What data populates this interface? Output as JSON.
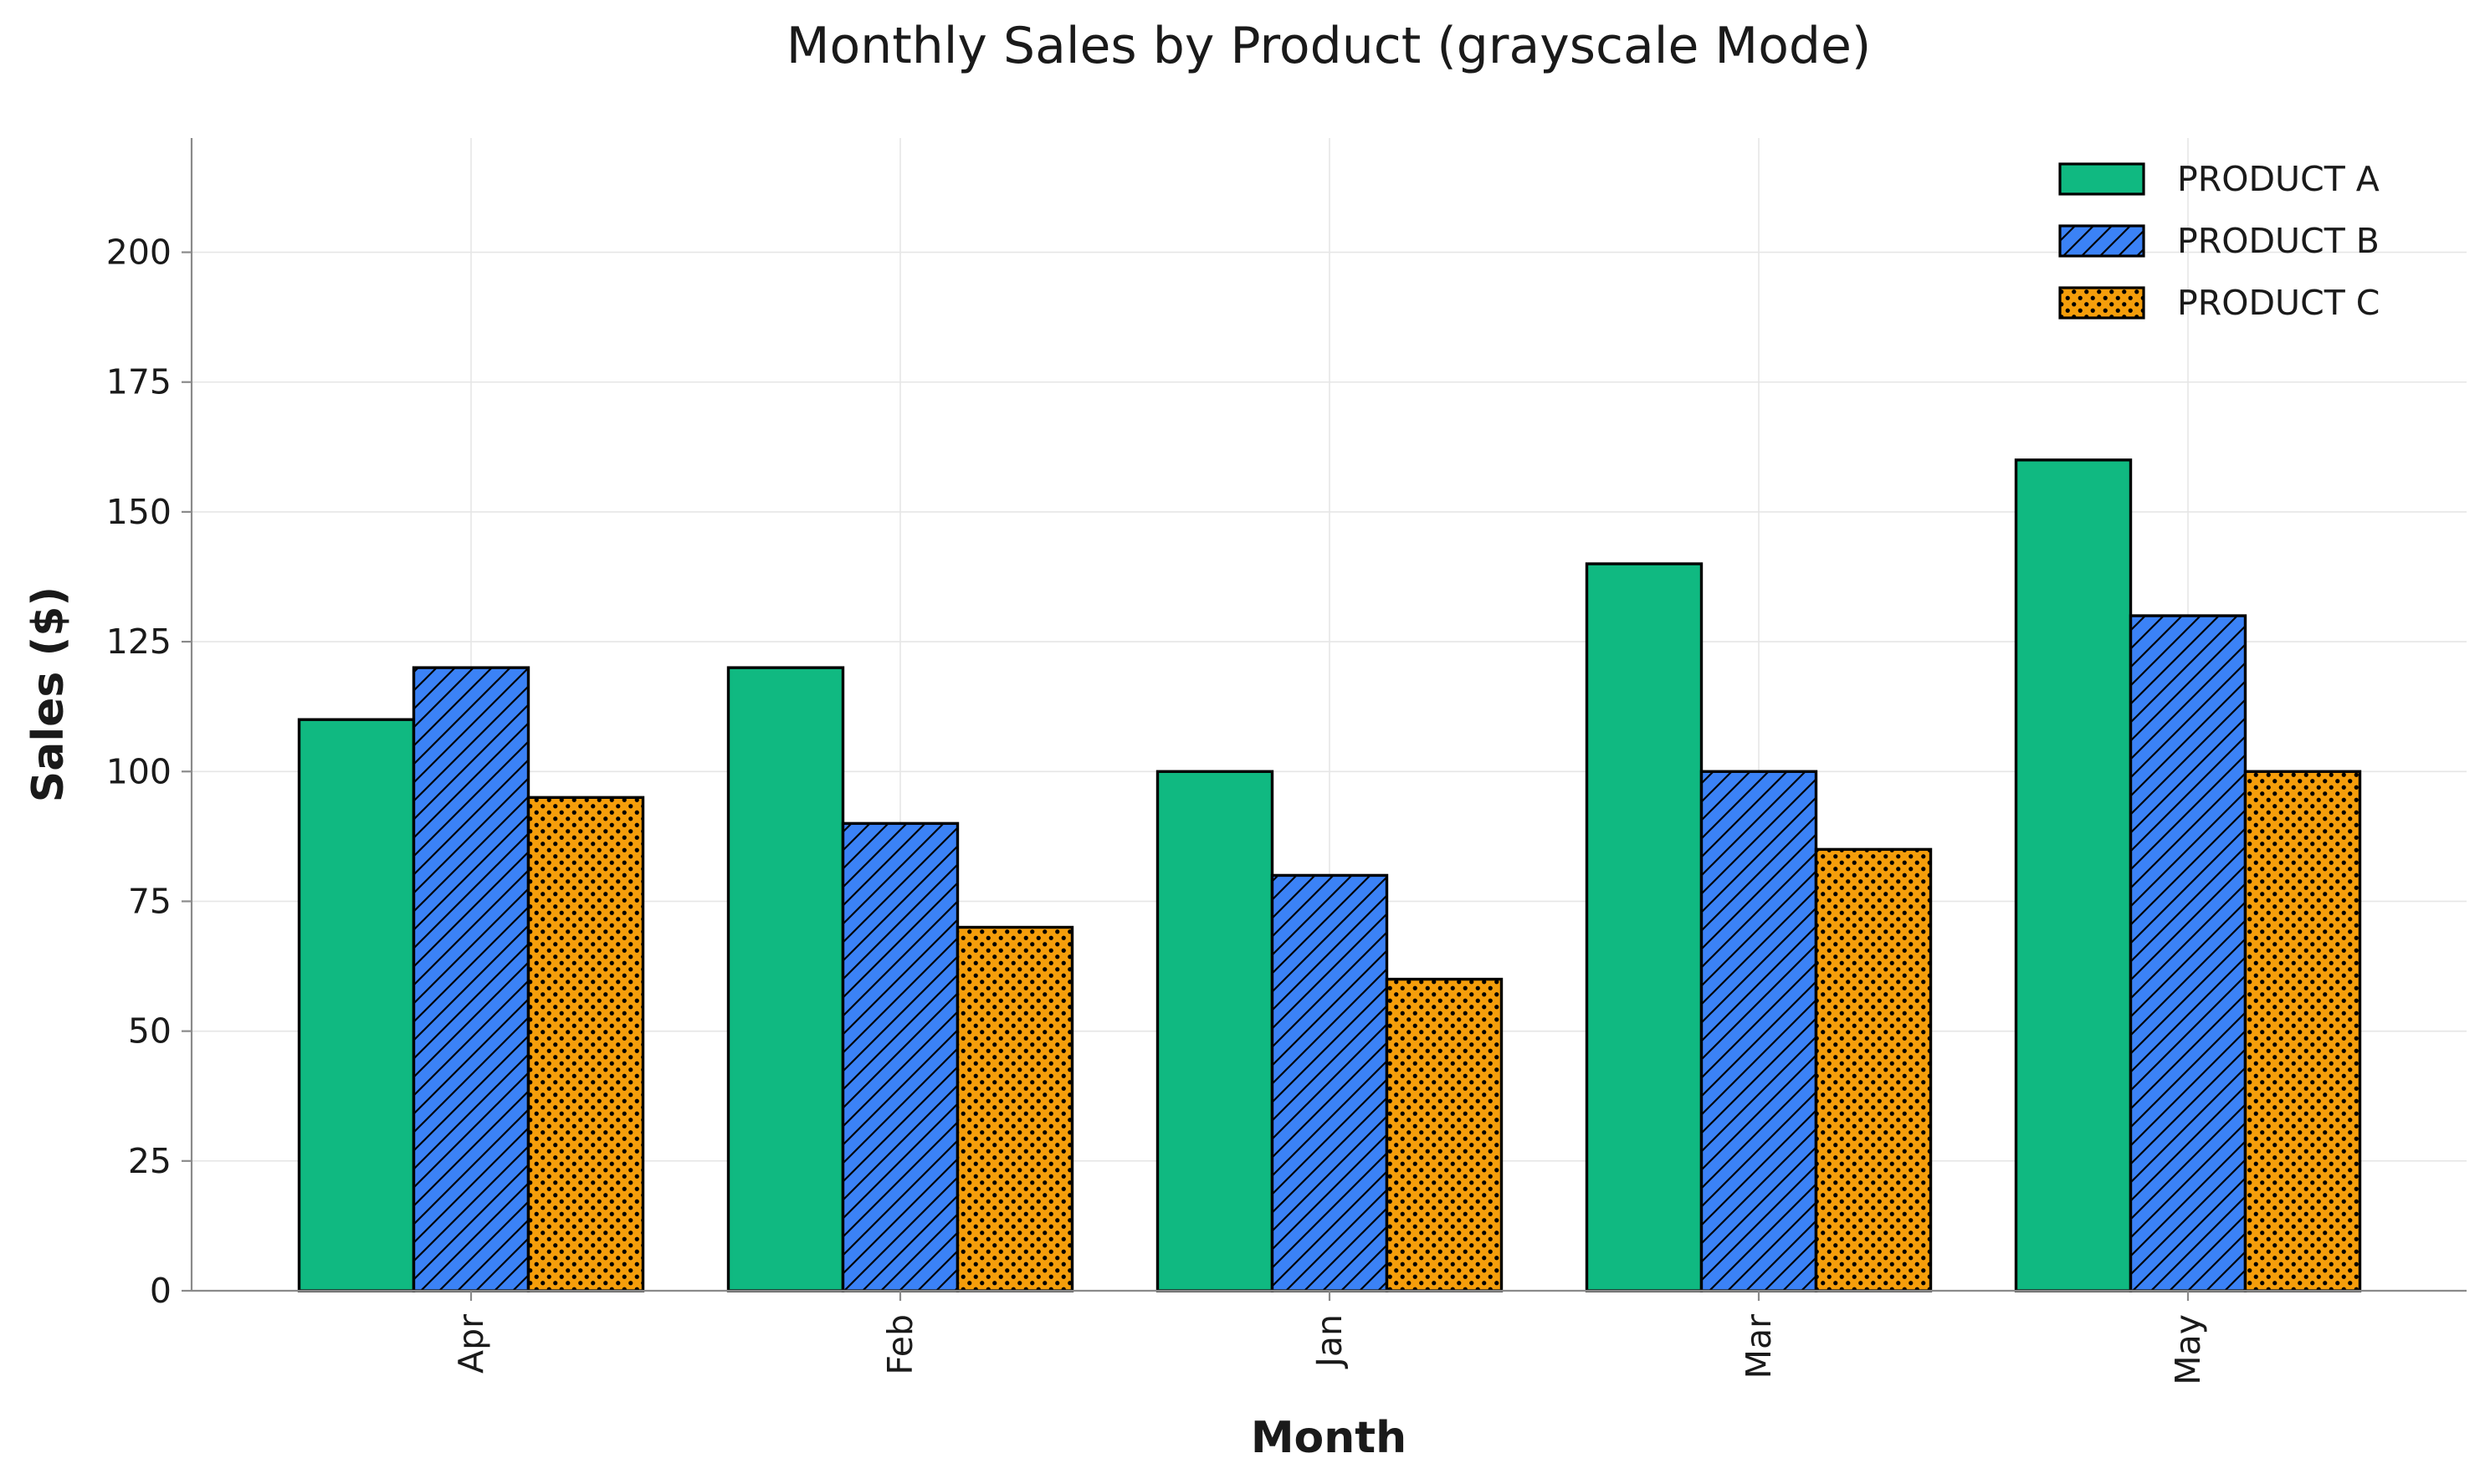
{
  "chart_data": {
    "type": "bar",
    "title": "Monthly Sales by Product (grayscale Mode)",
    "xlabel": "Month",
    "ylabel": "Sales ($)",
    "categories": [
      "Apr",
      "Feb",
      "Jan",
      "Mar",
      "May"
    ],
    "series": [
      {
        "name": "PRODUCT A",
        "values": [
          110,
          120,
          100,
          140,
          160
        ],
        "color": "#10b981",
        "pattern": "solid"
      },
      {
        "name": "PRODUCT B",
        "values": [
          120,
          90,
          80,
          100,
          130
        ],
        "color": "#3b82f6",
        "pattern": "diagonal-hatch"
      },
      {
        "name": "PRODUCT C",
        "values": [
          95,
          70,
          60,
          85,
          100
        ],
        "color": "#f59e0b",
        "pattern": "dots"
      }
    ],
    "ylim": [
      0,
      222
    ],
    "yticks": [
      0,
      25,
      50,
      75,
      100,
      125,
      150,
      175,
      200
    ],
    "ytick_labels": [
      "0",
      "25",
      "50",
      "75",
      "100",
      "125",
      "150",
      "175",
      "200"
    ],
    "grid": true,
    "legend_position": "top-right",
    "bar_edge_color": "#000000",
    "grid_color": "#e6e6e6",
    "axis_color": "#8a8a8a"
  }
}
